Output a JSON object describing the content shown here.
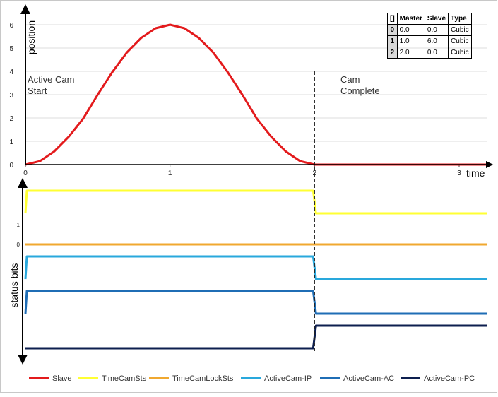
{
  "chart_data": [
    {
      "type": "line",
      "title": "",
      "xlabel": "time",
      "ylabel": "position",
      "xlim": [
        0,
        3.2
      ],
      "ylim": [
        0,
        6.5
      ],
      "x_ticks": [
        "0",
        "1",
        "2",
        "3"
      ],
      "y_ticks": [
        "0",
        "1",
        "2",
        "3",
        "4",
        "5",
        "6"
      ],
      "grid": "horizontal",
      "series": [
        {
          "name": "Slave",
          "color": "#e31a1c",
          "x": [
            0,
            0.1,
            0.2,
            0.3,
            0.4,
            0.5,
            0.6,
            0.7,
            0.8,
            0.9,
            1.0,
            1.1,
            1.2,
            1.3,
            1.4,
            1.5,
            1.6,
            1.7,
            1.8,
            1.9,
            2.0,
            3.2
          ],
          "y": [
            0,
            0.15,
            0.57,
            1.2,
            1.98,
            3.0,
            3.96,
            4.8,
            5.43,
            5.85,
            6.0,
            5.85,
            5.43,
            4.8,
            3.96,
            3.0,
            1.98,
            1.2,
            0.57,
            0.15,
            0,
            0
          ]
        }
      ],
      "annotations": [
        {
          "text_lines": [
            "Active Cam",
            "Start"
          ],
          "x": 0
        },
        {
          "text_lines": [
            "Cam",
            "Complete"
          ],
          "x": 2
        }
      ]
    },
    {
      "type": "line",
      "title": "",
      "xlabel": "",
      "ylabel": "status bits",
      "x_range": [
        0,
        3.2
      ],
      "y_ticks": [
        "1",
        "0"
      ],
      "step_time": 2,
      "series": [
        {
          "name": "TimeCamSts",
          "color": "#ffff33",
          "levels": [
            1,
            0
          ]
        },
        {
          "name": "TimeCamLockSts",
          "color": "#f0a830",
          "levels": [
            0,
            0
          ]
        },
        {
          "name": "ActiveCam-IP",
          "color": "#29a8dc",
          "levels": [
            1,
            0
          ]
        },
        {
          "name": "ActiveCam-AC",
          "color": "#1f6db5",
          "levels": [
            1,
            0
          ]
        },
        {
          "name": "ActiveCam-PC",
          "color": "#0d1f4f",
          "levels": [
            0,
            1
          ]
        }
      ]
    }
  ],
  "cam_table": {
    "headers": [
      "[]",
      "Master",
      "Slave",
      "Type"
    ],
    "rows": [
      {
        "index": "0",
        "master": "0.0",
        "slave": "0.0",
        "type": "Cubic"
      },
      {
        "index": "1",
        "master": "1.0",
        "slave": "6.0",
        "type": "Cubic"
      },
      {
        "index": "2",
        "master": "2.0",
        "slave": "0.0",
        "type": "Cubic"
      }
    ]
  },
  "legend": [
    "Slave",
    "TimeCamSts",
    "TimeCamLockSts",
    "ActiveCam-IP",
    "ActiveCam-AC",
    "ActiveCam-PC"
  ]
}
